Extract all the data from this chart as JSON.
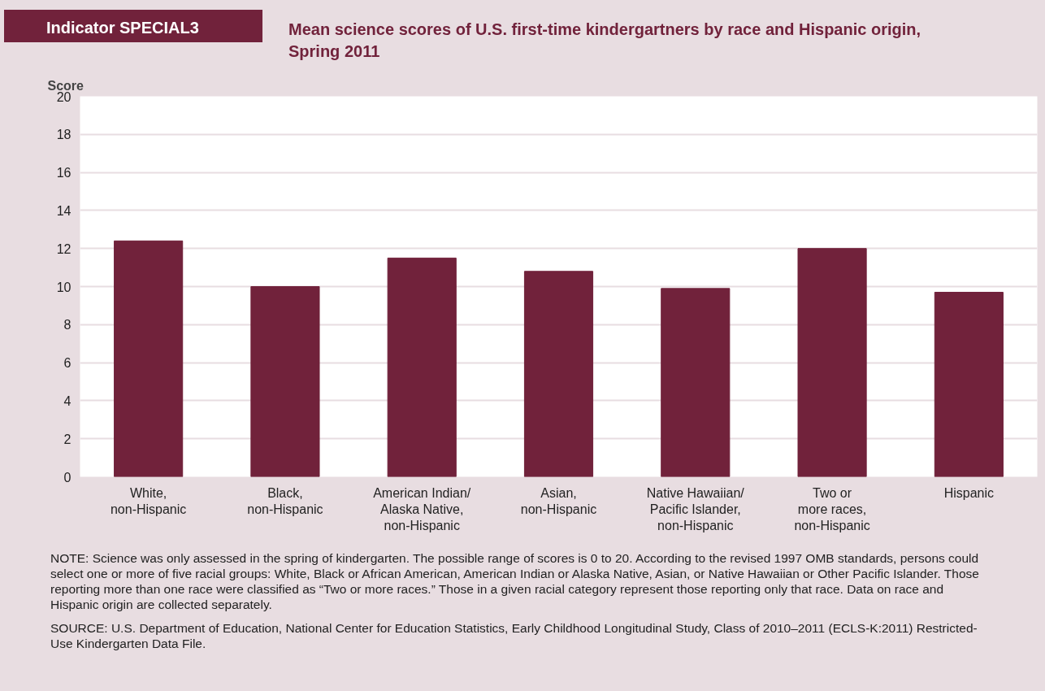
{
  "chart_data": {
    "type": "bar",
    "title": "Mean science scores of U.S. first-time kindergartners by race and Hispanic origin,\nSpring 2011",
    "ylabel": "Score",
    "categories": [
      "White,\nnon-Hispanic",
      "Black,\nnon-Hispanic",
      "American Indian/\nAlaska Native,\nnon-Hispanic",
      "Asian,\nnon-Hispanic",
      "Native Hawaiian/\nPacific Islander,\nnon-Hispanic",
      "Two or\nmore races,\nnon-Hispanic",
      "Hispanic"
    ],
    "values": [
      12.4,
      10.0,
      11.5,
      10.8,
      9.9,
      12.0,
      9.7
    ],
    "color": "#71223b",
    "ylim": [
      0,
      20
    ],
    "yticks": [
      0,
      2,
      4,
      6,
      8,
      10,
      12,
      14,
      16,
      18,
      20
    ],
    "grid": "y",
    "annotations": [
      "Indicator SPECIAL3",
      "NOTE: Science was only assessed in the spring of kindergarten. The possible range of scores is 0 to 20. According to the revised 1997 OMB standards, persons could select one or more of five racial groups: White, Black or African American, American Indian or Alaska Native, Asian, or Native Hawaiian or Other Pacific Islander. Those reporting more than one race were classified as “Two or more races.” Those in a given racial category represent those reporting only that race. Data on race and Hispanic origin are collected separately.",
      "SOURCE: U.S. Department of Education, National Center for Education Statistics, Early Childhood Longitudinal Study, Class of 2010–2011 (ECLS-K:2011) Restricted-Use Kindergarten Data File."
    ]
  }
}
